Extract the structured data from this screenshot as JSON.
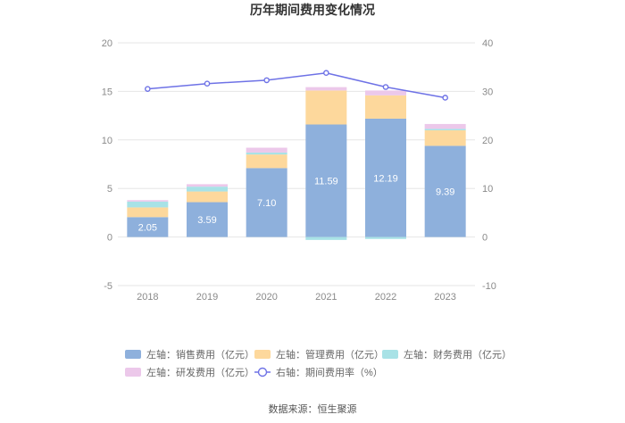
{
  "chart_data": {
    "type": "bar",
    "title": "历年期间费用变化情况",
    "categories": [
      "2018",
      "2019",
      "2020",
      "2021",
      "2022",
      "2023"
    ],
    "left_axis": {
      "min": -5,
      "max": 20,
      "ticks": [
        "20",
        "15",
        "10",
        "5",
        "0",
        "-5"
      ]
    },
    "right_axis": {
      "min": -10,
      "max": 40,
      "ticks": [
        "40",
        "30",
        "20",
        "10",
        "0",
        "-10"
      ]
    },
    "series": [
      {
        "name": "左轴：销售费用（亿元）",
        "axis": "left",
        "stack": true,
        "color": "#8eb0dc",
        "legend_shape": "rect",
        "values": [
          2.05,
          3.59,
          7.1,
          11.59,
          12.19,
          9.39
        ],
        "labels": [
          "2.05",
          "3.59",
          "7.10",
          "11.59",
          "12.19",
          "9.39"
        ]
      },
      {
        "name": "左轴：管理费用（亿元）",
        "axis": "left",
        "stack": true,
        "color": "#fdd89c",
        "legend_shape": "rect",
        "values": [
          1.0,
          1.1,
          1.4,
          3.5,
          2.4,
          1.6
        ]
      },
      {
        "name": "左轴：财务费用（亿元）",
        "axis": "left",
        "stack": true,
        "color": "#a8e2e6",
        "legend_shape": "rect",
        "values": [
          0.6,
          0.5,
          0.2,
          -0.3,
          -0.2,
          0.15
        ]
      },
      {
        "name": "左轴：研发费用（亿元）",
        "axis": "left",
        "stack": true,
        "color": "#ecc8ea",
        "legend_shape": "rect",
        "values": [
          0.15,
          0.25,
          0.5,
          0.35,
          0.5,
          0.5
        ]
      },
      {
        "name": "右轴：期间费用率（%）",
        "axis": "right",
        "type": "line",
        "color": "#6e72e6",
        "legend_shape": "line",
        "values": [
          30.5,
          31.6,
          32.3,
          33.8,
          30.9,
          28.7
        ]
      }
    ],
    "source": "数据来源：恒生聚源"
  }
}
